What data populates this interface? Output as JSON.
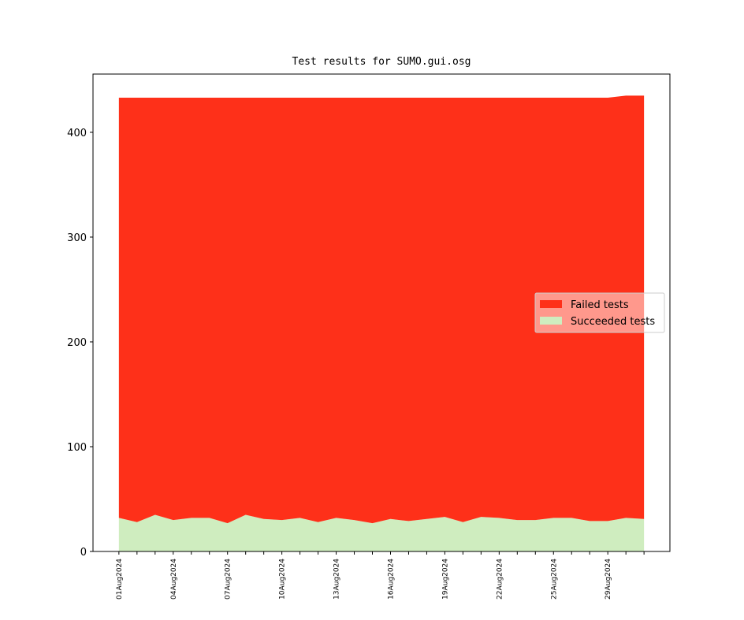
{
  "chart_data": {
    "type": "stacked-area",
    "title": "Test results for SUMO.gui.osg",
    "categories": [
      "01Aug2024",
      null,
      null,
      "04Aug2024",
      null,
      null,
      "07Aug2024",
      null,
      null,
      "10Aug2024",
      null,
      null,
      "13Aug2024",
      null,
      null,
      "16Aug2024",
      null,
      null,
      "19Aug2024",
      null,
      null,
      "22Aug2024",
      null,
      null,
      "25Aug2024",
      null,
      null,
      "29Aug2024",
      null,
      null
    ],
    "series": [
      {
        "name": "Failed tests",
        "color": "#fe3019",
        "values": [
          401,
          405,
          398,
          403,
          401,
          401,
          406,
          398,
          402,
          403,
          401,
          405,
          401,
          403,
          406,
          402,
          404,
          402,
          400,
          405,
          400,
          401,
          403,
          403,
          401,
          401,
          404,
          404,
          403,
          404
        ]
      },
      {
        "name": "Succeeded tests",
        "color": "#cfedbf",
        "values": [
          32,
          28,
          35,
          30,
          32,
          32,
          27,
          35,
          31,
          30,
          32,
          28,
          32,
          30,
          27,
          31,
          29,
          31,
          33,
          28,
          33,
          32,
          30,
          30,
          32,
          32,
          29,
          29,
          32,
          31
        ]
      }
    ],
    "ylim": [
      0,
      455.6
    ],
    "yticks": [
      0,
      100,
      200,
      300,
      400
    ],
    "legend": "center right"
  }
}
